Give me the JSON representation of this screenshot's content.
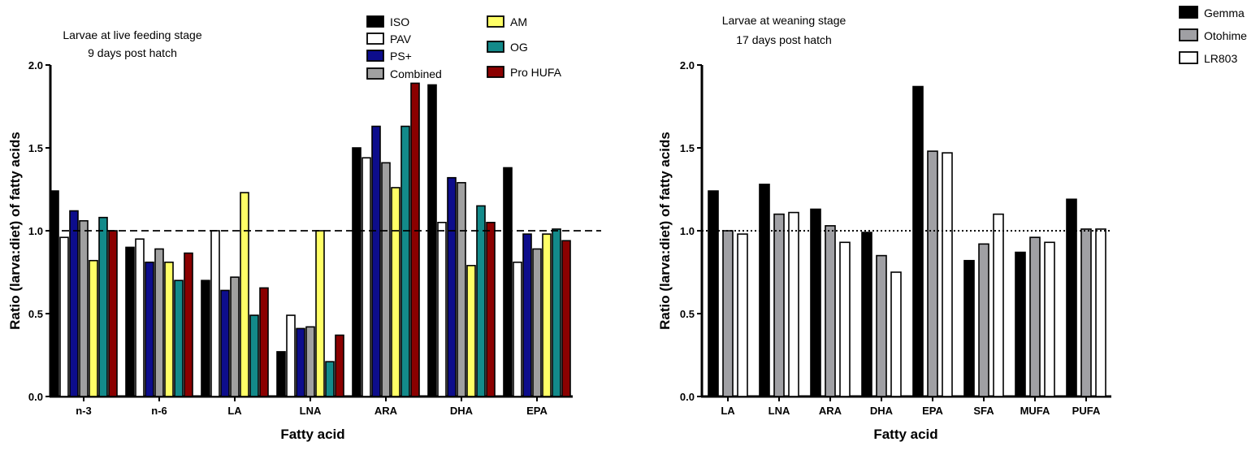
{
  "chart_data": [
    {
      "type": "bar",
      "title": [
        "Larvae at live feeding stage",
        "9 days post hatch"
      ],
      "xlabel": "Fatty acid",
      "ylabel": "Ratio (larva:diet) of fatty acids",
      "ylim": [
        0,
        2.0
      ],
      "yticks": [
        "0.0",
        "0.5",
        "1.0",
        "1.5",
        "2.0"
      ],
      "reference_line": {
        "value": 1.0,
        "style": "dashed"
      },
      "legend_position": "top-right",
      "categories": [
        "n-3",
        "n-6",
        "LA",
        "LNA",
        "ARA",
        "DHA",
        "EPA"
      ],
      "series": [
        {
          "name": "ISO",
          "color": "#000000",
          "values": [
            1.24,
            0.9,
            0.7,
            0.27,
            1.5,
            1.88,
            1.38
          ]
        },
        {
          "name": "PAV",
          "color": "#ffffff",
          "values": [
            0.96,
            0.95,
            1.0,
            0.49,
            1.44,
            1.05,
            0.81
          ]
        },
        {
          "name": "PS+",
          "color": "#0d0d8c",
          "values": [
            1.12,
            0.81,
            0.64,
            0.41,
            1.63,
            1.32,
            0.98
          ]
        },
        {
          "name": "Combined",
          "color": "#a0a0a0",
          "values": [
            1.06,
            0.89,
            0.72,
            0.42,
            1.41,
            1.29,
            0.89
          ]
        },
        {
          "name": "AM",
          "color": "#ffff66",
          "values": [
            0.82,
            0.81,
            1.23,
            1.0,
            1.26,
            0.79,
            0.98
          ]
        },
        {
          "name": "OG",
          "color": "#138a8a",
          "values": [
            1.08,
            0.7,
            0.49,
            0.21,
            1.63,
            1.15,
            1.01
          ]
        },
        {
          "name": "Pro HUFA",
          "color": "#8b0000",
          "values": [
            1.0,
            0.865,
            0.655,
            0.37,
            1.89,
            1.05,
            0.94
          ]
        }
      ]
    },
    {
      "type": "bar",
      "title": [
        "Larvae at weaning stage",
        "17 days post hatch"
      ],
      "xlabel": "Fatty acid",
      "ylabel": "Ratio (larva:diet) of fatty acids",
      "ylim": [
        0,
        2.0
      ],
      "yticks": [
        "0.0",
        "0.5",
        "1.0",
        "1.5",
        "2.0"
      ],
      "reference_line": {
        "value": 1.0,
        "style": "dotted"
      },
      "legend_position": "top-right",
      "categories": [
        "LA",
        "LNA",
        "ARA",
        "DHA",
        "EPA",
        "SFA",
        "MUFA",
        "PUFA"
      ],
      "series": [
        {
          "name": "Gemma",
          "color": "#000000",
          "values": [
            1.24,
            1.28,
            1.13,
            0.99,
            1.87,
            0.82,
            0.87,
            1.19
          ]
        },
        {
          "name": "Otohime",
          "color": "#a0a0a4",
          "values": [
            1.0,
            1.1,
            1.03,
            0.85,
            1.48,
            0.92,
            0.96,
            1.01
          ]
        },
        {
          "name": "LR803",
          "color": "#ffffff",
          "values": [
            0.98,
            1.11,
            0.93,
            0.75,
            1.47,
            1.1,
            0.93,
            1.01
          ]
        }
      ]
    }
  ]
}
